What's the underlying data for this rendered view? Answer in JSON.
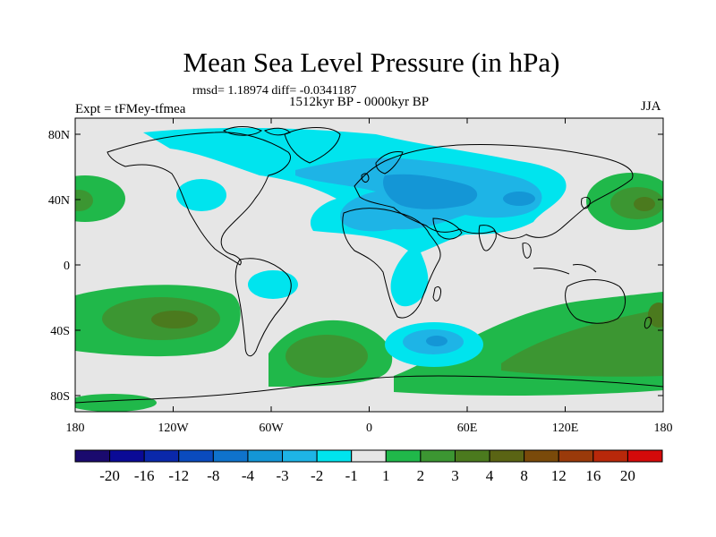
{
  "title": "Mean Sea Level Pressure (in hPa)",
  "stats_text": "rmsd= 1.18974 diff= -0.0341187",
  "period_text": "1512kyr BP - 0000kyr BP",
  "experiment_text": "Expt = tFMey-tfmea",
  "season_text": "JJA",
  "axes": {
    "lat_ticks": [
      "80N",
      "40N",
      "0",
      "40S",
      "80S"
    ],
    "lon_ticks": [
      "180",
      "120W",
      "60W",
      "0",
      "60E",
      "120E",
      "180"
    ]
  },
  "colorbar": {
    "labels": [
      "-20",
      "-16",
      "-12",
      "-8",
      "-4",
      "-3",
      "-2",
      "-1",
      "1",
      "2",
      "3",
      "4",
      "8",
      "12",
      "16",
      "20"
    ],
    "colors": [
      "#1a0a6e",
      "#0a0a96",
      "#0a28aa",
      "#0a4bbe",
      "#0f73cc",
      "#1496d6",
      "#1eb4e6",
      "#00e4ee",
      "#e6e6e6",
      "#20b84a",
      "#3c9632",
      "#4b7a1e",
      "#5a6414",
      "#7a4a0a",
      "#9a3a0a",
      "#b8280a",
      "#d40a0a"
    ]
  },
  "colors": {
    "background": "#e6e6e6",
    "neg_1_2": "#00e4ee",
    "neg_2_3": "#1eb4e6",
    "neg_3_4": "#1496d6",
    "pos_1_2": "#20b84a",
    "pos_2_3": "#3c9632",
    "pos_3_4": "#4b7a1e"
  }
}
